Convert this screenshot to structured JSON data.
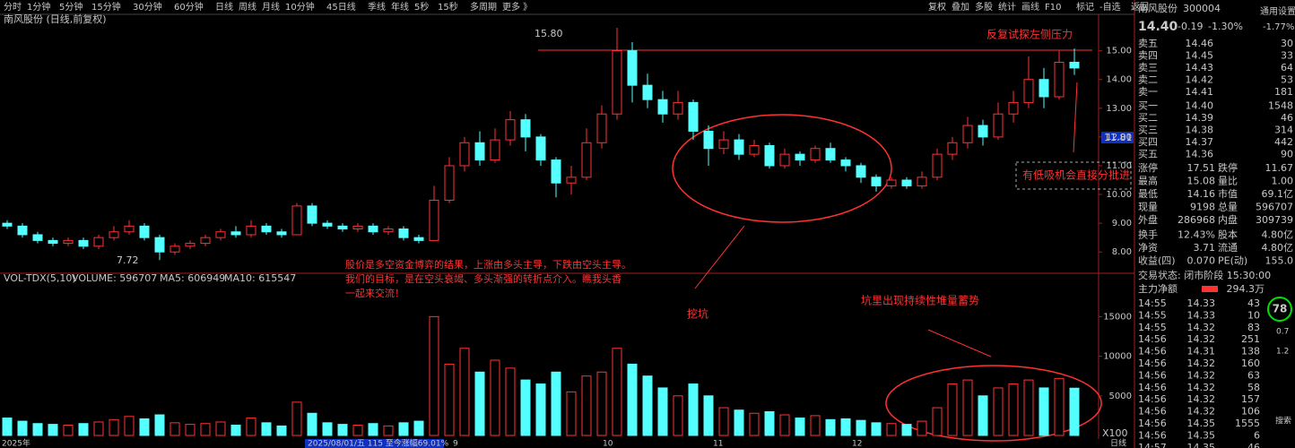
{
  "toolbar": {
    "left": [
      "分时",
      "1分钟",
      "5分钟",
      "15分钟",
      "30分钟",
      "60分钟",
      "日线",
      "周线",
      "月线",
      "10分钟",
      "45日线",
      "季线",
      "年线",
      "5秒",
      "15秒",
      "多周期",
      "更多 》"
    ],
    "right": [
      "复权",
      "叠加",
      "多股",
      "统计",
      "画线",
      "F10",
      "标记",
      "-自选",
      "返回"
    ]
  },
  "chart_data": [
    {
      "type": "candlestick",
      "title": "南风股份 (日线,前复权)",
      "up_color": "#ff3232",
      "down_color": "#54ffff",
      "open": [
        9.0,
        8.9,
        8.6,
        8.4,
        8.3,
        8.4,
        8.2,
        8.5,
        8.7,
        8.9,
        8.5,
        8.0,
        8.2,
        8.3,
        8.5,
        8.7,
        8.6,
        8.9,
        8.7,
        8.6,
        9.6,
        9.0,
        8.9,
        8.8,
        8.9,
        8.7,
        8.8,
        8.5,
        8.4,
        9.8,
        11.0,
        11.8,
        11.2,
        11.9,
        12.6,
        12.0,
        11.2,
        10.4,
        10.6,
        11.8,
        12.8,
        15.0,
        13.8,
        13.3,
        12.8,
        13.2,
        12.2,
        11.6,
        11.9,
        11.4,
        11.7,
        11.0,
        11.4,
        11.2,
        11.6,
        11.2,
        11.0,
        10.6,
        10.3,
        10.5,
        10.3,
        10.6,
        11.4,
        11.8,
        12.4,
        12.0,
        12.8,
        13.2,
        14.0,
        13.4,
        14.6
      ],
      "high": [
        9.1,
        9.0,
        8.7,
        8.5,
        8.5,
        8.5,
        8.6,
        8.9,
        9.1,
        9.0,
        8.6,
        8.3,
        8.4,
        8.6,
        8.8,
        8.9,
        9.1,
        9.0,
        8.8,
        9.7,
        9.7,
        9.1,
        9.0,
        9.0,
        9.0,
        8.9,
        8.9,
        8.6,
        10.3,
        11.3,
        12.0,
        12.2,
        12.3,
        12.9,
        12.8,
        12.1,
        11.3,
        11.0,
        12.3,
        13.1,
        15.8,
        15.3,
        14.2,
        13.6,
        13.6,
        13.3,
        12.4,
        12.2,
        12.1,
        11.9,
        11.8,
        11.6,
        11.5,
        11.7,
        11.8,
        11.3,
        11.1,
        10.7,
        10.6,
        10.6,
        10.8,
        11.6,
        12.0,
        12.7,
        12.6,
        13.2,
        13.6,
        14.8,
        14.4,
        15.0,
        15.08
      ],
      "low": [
        8.8,
        8.5,
        8.3,
        8.2,
        8.2,
        8.1,
        8.1,
        8.4,
        8.6,
        8.4,
        7.72,
        7.9,
        8.1,
        8.2,
        8.4,
        8.5,
        8.5,
        8.6,
        8.5,
        8.6,
        8.9,
        8.8,
        8.7,
        8.7,
        8.6,
        8.6,
        8.4,
        8.3,
        8.4,
        9.7,
        10.8,
        11.0,
        11.1,
        11.7,
        11.5,
        11.0,
        9.9,
        10.0,
        10.5,
        11.6,
        12.6,
        13.2,
        13.0,
        12.5,
        12.6,
        11.9,
        11.0,
        11.4,
        11.2,
        11.3,
        10.9,
        10.9,
        11.0,
        11.1,
        11.1,
        10.8,
        10.4,
        10.1,
        10.2,
        10.2,
        10.2,
        10.5,
        11.2,
        11.6,
        11.7,
        11.9,
        12.5,
        13.0,
        13.0,
        13.3,
        14.16
      ],
      "close": [
        8.9,
        8.6,
        8.4,
        8.3,
        8.4,
        8.2,
        8.5,
        8.7,
        8.9,
        8.5,
        8.0,
        8.2,
        8.3,
        8.5,
        8.7,
        8.6,
        8.9,
        8.7,
        8.6,
        9.6,
        9.0,
        8.9,
        8.8,
        8.9,
        8.7,
        8.8,
        8.5,
        8.4,
        9.8,
        11.0,
        11.8,
        11.2,
        11.9,
        12.6,
        12.0,
        11.2,
        10.4,
        10.6,
        11.8,
        12.8,
        15.0,
        13.8,
        13.3,
        12.8,
        13.2,
        12.2,
        11.6,
        11.9,
        11.4,
        11.7,
        11.0,
        11.4,
        11.2,
        11.6,
        11.2,
        11.0,
        10.6,
        10.3,
        10.5,
        10.3,
        10.6,
        11.4,
        11.8,
        12.4,
        12.0,
        12.8,
        13.2,
        14.0,
        13.4,
        14.6,
        14.4
      ],
      "ylim": [
        7.57,
        16.08
      ],
      "yticks": [
        {
          "value": 8,
          "label": "8.00"
        },
        {
          "value": 9,
          "label": "9.00"
        },
        {
          "value": 10,
          "label": "10.00"
        },
        {
          "value": 11,
          "label": "11.00"
        },
        {
          "value": 12,
          "label": "12.00"
        },
        {
          "value": 13,
          "label": "13.00"
        },
        {
          "value": 14,
          "label": "14.00"
        },
        {
          "value": 15,
          "label": "15.00"
        }
      ],
      "high_label": "15.80",
      "low_label": "7.72",
      "axis_marker": "11.81"
    },
    {
      "type": "bar",
      "title": "VOL-TDX(5,10)",
      "legend_items": [
        "VOLUME: 596707",
        "MA5: 606949",
        "MA10: 615547"
      ],
      "values": [
        2200,
        1800,
        1500,
        1400,
        1300,
        1500,
        1700,
        2000,
        2400,
        2100,
        2600,
        1600,
        1400,
        1500,
        1700,
        1300,
        2200,
        1600,
        1200,
        4200,
        2800,
        1600,
        1400,
        1300,
        1500,
        1200,
        1600,
        1800,
        15000,
        9000,
        11000,
        8000,
        9500,
        8500,
        7000,
        6500,
        8000,
        5500,
        7500,
        8000,
        11000,
        9000,
        7500,
        6000,
        5000,
        6500,
        5000,
        3500,
        3200,
        2800,
        3000,
        2600,
        2200,
        2500,
        2000,
        2100,
        1900,
        1600,
        1500,
        1400,
        1800,
        3500,
        6500,
        7000,
        5000,
        6000,
        6500,
        7000,
        6000,
        7200,
        5967.07
      ],
      "ylim": [
        0,
        19000
      ],
      "yticks": [
        5000,
        10000,
        15000
      ],
      "unit": "X100",
      "x_labels": [
        "2025年",
        "2025/08/01/五 115 至今涨幅69.01%",
        "9",
        "10",
        "11",
        "12",
        "日线"
      ]
    }
  ],
  "annotations": {
    "resistance": "反复试探左侧压力",
    "buy_hint": "有低吸机会直接分批进",
    "note": [
      "股价是多空资金博弈的结果，上涨由多头主导，下跌由空头主导。",
      "我们的目标，是在空头衰竭、多头渐强的转折点介入。瞧我头香",
      "一起来交流！"
    ],
    "pit": "挖坑",
    "volume_note": "坑里出现持续性堆量蓄势"
  },
  "quote": {
    "name": "南风股份",
    "code": "300004",
    "price": "14.40",
    "change": "-0.19",
    "change_pct": "-1.30%",
    "settings": "通用设置",
    "index_change": "-1.77%"
  },
  "order_book": [
    [
      "卖五",
      "14.46",
      "30"
    ],
    [
      "卖四",
      "14.45",
      "33"
    ],
    [
      "卖三",
      "14.43",
      "64"
    ],
    [
      "卖二",
      "14.42",
      "53"
    ],
    [
      "卖一",
      "14.41",
      "181"
    ],
    [
      "买一",
      "14.40",
      "1548"
    ],
    [
      "买二",
      "14.39",
      "46"
    ],
    [
      "买三",
      "14.38",
      "314"
    ],
    [
      "买四",
      "14.37",
      "442"
    ],
    [
      "买五",
      "14.36",
      "90"
    ]
  ],
  "stats": [
    [
      "涨停",
      "17.51",
      "跌停",
      "11.67"
    ],
    [
      "最高",
      "15.08",
      "量比",
      "1.00"
    ],
    [
      "最低",
      "14.16",
      "市值",
      "69.1亿"
    ],
    [
      "现量",
      "9198",
      "总量",
      "596707"
    ],
    [
      "外盘",
      "286968",
      "内盘",
      "309739"
    ],
    [
      "换手",
      "12.43%",
      "股本",
      "4.80亿"
    ],
    [
      "净资",
      "3.71",
      "流通",
      "4.80亿"
    ],
    [
      "收益(四)",
      "0.070",
      "PE(动)",
      "155.0"
    ]
  ],
  "status": "交易状态: 闭市阶段 15:30:00",
  "main_net": [
    "主力净额",
    "294.3万"
  ],
  "trades": [
    [
      "14:55",
      "14.33",
      "43"
    ],
    [
      "14:55",
      "14.33",
      "10"
    ],
    [
      "14:55",
      "14.32",
      "83"
    ],
    [
      "14:56",
      "14.32",
      "251"
    ],
    [
      "14:56",
      "14.31",
      "138"
    ],
    [
      "14:56",
      "14.32",
      "160"
    ],
    [
      "14:56",
      "14.32",
      "63"
    ],
    [
      "14:56",
      "14.32",
      "58"
    ],
    [
      "14:56",
      "14.32",
      "157"
    ],
    [
      "14:56",
      "14.32",
      "106"
    ],
    [
      "14:56",
      "14.35",
      "1555"
    ],
    [
      "14:56",
      "14.35",
      "6"
    ],
    [
      "14:57",
      "14.35",
      "46"
    ]
  ],
  "side": [
    "78",
    "0.7",
    "1.2",
    "搜索"
  ]
}
